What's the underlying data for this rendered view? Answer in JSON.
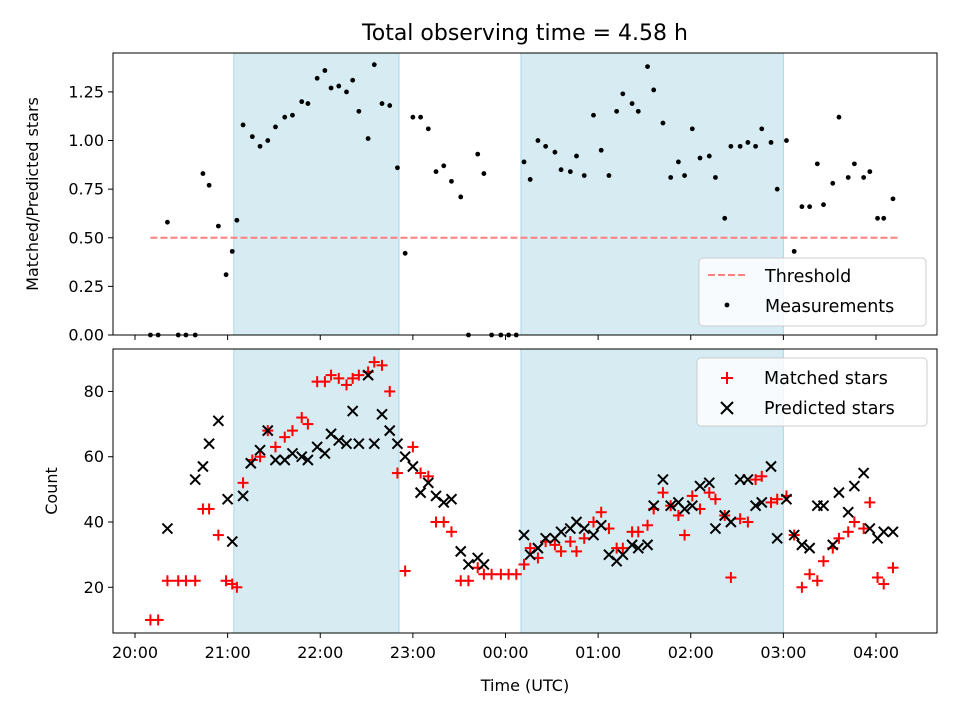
{
  "chart_data": [
    {
      "type": "scatter",
      "title": "Total observing time = 4.58 h",
      "xlabel": "",
      "ylabel": "Matched/Predicted stars",
      "ylim": [
        0,
        1.45
      ],
      "yticks": [
        "0.00",
        "0.25",
        "0.50",
        "0.75",
        "1.00",
        "1.25"
      ],
      "legend_position": "lower right",
      "highlight_intervals_utc": [
        [
          "21:04",
          "22:51"
        ],
        [
          "00:10",
          "03:00"
        ]
      ],
      "threshold": {
        "name": "Threshold",
        "value": 0.5,
        "x_start": "20:10",
        "x_end": "04:15",
        "color": "#ff7f7f",
        "style": "dashed"
      },
      "series": [
        {
          "name": "Measurements",
          "color": "#000000",
          "marker": "dot",
          "x": [
            "20:10",
            "20:15",
            "20:21",
            "20:28",
            "20:33",
            "20:39",
            "20:44",
            "20:48",
            "20:54",
            "20:59",
            "21:03",
            "21:06",
            "21:10",
            "21:16",
            "21:21",
            "21:26",
            "21:31",
            "21:37",
            "21:42",
            "21:48",
            "21:52",
            "21:58",
            "22:03",
            "22:07",
            "22:12",
            "22:17",
            "22:21",
            "22:25",
            "22:31",
            "22:35",
            "22:40",
            "22:45",
            "22:50",
            "22:55",
            "23:00",
            "23:05",
            "23:10",
            "23:15",
            "23:20",
            "23:25",
            "23:31",
            "23:36",
            "23:42",
            "23:46",
            "23:51",
            "23:57",
            "24:02",
            "24:07",
            "24:12",
            "24:16",
            "24:21",
            "24:26",
            "24:32",
            "24:36",
            "24:42",
            "24:46",
            "24:51",
            "24:57",
            "25:02",
            "25:07",
            "25:12",
            "25:16",
            "25:22",
            "25:26",
            "25:32",
            "25:36",
            "25:42",
            "25:47",
            "25:52",
            "25:56",
            "26:01",
            "26:06",
            "26:12",
            "26:16",
            "26:22",
            "26:26",
            "26:32",
            "26:37",
            "26:42",
            "26:46",
            "26:52",
            "26:56",
            "27:02",
            "27:07",
            "27:12",
            "27:17",
            "27:22",
            "27:26",
            "27:32",
            "27:36",
            "27:42",
            "27:46",
            "27:52",
            "27:56",
            "28:01",
            "28:05",
            "28:11"
          ],
          "y": [
            0,
            0,
            0.58,
            0,
            0,
            0,
            0.83,
            0.77,
            0.56,
            0.31,
            0.43,
            0.59,
            1.08,
            1.02,
            0.97,
            1.0,
            1.07,
            1.12,
            1.13,
            1.2,
            1.19,
            1.32,
            1.36,
            1.27,
            1.28,
            1.25,
            1.31,
            1.15,
            1.01,
            1.39,
            1.19,
            1.18,
            0.86,
            0.42,
            1.12,
            1.12,
            1.06,
            0.84,
            0.87,
            0.79,
            0.71,
            0,
            0.93,
            0.83,
            0,
            0,
            0,
            0,
            0.89,
            0.8,
            1.0,
            0.97,
            0.94,
            0.85,
            0.84,
            0.92,
            0.82,
            1.13,
            0.95,
            0.82,
            1.15,
            1.24,
            1.19,
            1.15,
            1.38,
            1.26,
            1.09,
            0.81,
            0.89,
            0.82,
            1.06,
            0.91,
            0.92,
            0.81,
            0.6,
            0.97,
            0.97,
            0.99,
            0.97,
            1.06,
            0.99,
            0.75,
            1.0,
            0.43,
            0.66,
            0.66,
            0.88,
            0.67,
            0.78,
            1.12,
            0.81,
            0.88,
            0.81,
            0.84,
            0.6,
            0.6,
            0.7
          ]
        }
      ]
    },
    {
      "type": "scatter",
      "title": "",
      "xlabel": "Time (UTC)",
      "ylabel": "Count",
      "ylim": [
        6,
        93
      ],
      "yticks": [
        "20",
        "40",
        "60",
        "80"
      ],
      "xticks": [
        "20:00",
        "21:00",
        "22:00",
        "23:00",
        "00:00",
        "01:00",
        "02:00",
        "03:00",
        "04:00"
      ],
      "legend_position": "upper right",
      "highlight_intervals_utc": [
        [
          "21:04",
          "22:51"
        ],
        [
          "00:10",
          "03:00"
        ]
      ],
      "series": [
        {
          "name": "Matched stars",
          "color": "#ff0000",
          "marker": "plus",
          "x": [
            "20:10",
            "20:15",
            "20:21",
            "20:28",
            "20:33",
            "20:39",
            "20:44",
            "20:48",
            "20:54",
            "20:59",
            "21:03",
            "21:06",
            "21:10",
            "21:16",
            "21:21",
            "21:26",
            "21:31",
            "21:37",
            "21:42",
            "21:48",
            "21:52",
            "21:58",
            "22:03",
            "22:07",
            "22:12",
            "22:17",
            "22:21",
            "22:25",
            "22:31",
            "22:35",
            "22:40",
            "22:45",
            "22:50",
            "22:55",
            "23:00",
            "23:05",
            "23:10",
            "23:15",
            "23:20",
            "23:25",
            "23:31",
            "23:36",
            "23:42",
            "23:46",
            "23:51",
            "23:57",
            "24:02",
            "24:07",
            "24:12",
            "24:16",
            "24:21",
            "24:26",
            "24:32",
            "24:36",
            "24:42",
            "24:46",
            "24:51",
            "24:57",
            "25:02",
            "25:07",
            "25:12",
            "25:16",
            "25:22",
            "25:26",
            "25:32",
            "25:36",
            "25:42",
            "25:47",
            "25:52",
            "25:56",
            "26:01",
            "26:06",
            "26:12",
            "26:16",
            "26:22",
            "26:26",
            "26:32",
            "26:37",
            "26:42",
            "26:46",
            "26:52",
            "26:56",
            "27:02",
            "27:07",
            "27:12",
            "27:17",
            "27:22",
            "27:26",
            "27:32",
            "27:36",
            "27:42",
            "27:46",
            "27:52",
            "27:56",
            "28:01",
            "28:05",
            "28:11"
          ],
          "y": [
            10,
            10,
            22,
            22,
            22,
            22,
            44,
            44,
            36,
            22,
            21,
            20,
            52,
            59,
            60,
            68,
            63,
            66,
            68,
            72,
            70,
            83,
            83,
            85,
            84,
            82,
            84,
            85,
            86,
            89,
            88,
            80,
            55,
            25,
            63,
            55,
            54,
            40,
            40,
            37,
            22,
            22,
            26,
            24,
            24,
            24,
            24,
            24,
            27,
            32,
            29,
            34,
            33,
            31,
            34,
            31,
            35,
            40,
            43,
            38,
            32,
            32,
            37,
            37,
            39,
            44,
            49,
            45,
            42,
            36,
            48,
            44,
            49,
            47,
            42,
            23,
            41,
            40,
            53,
            54,
            46,
            47,
            48,
            36,
            20,
            24,
            22,
            28,
            32,
            35,
            37,
            40,
            38,
            46,
            23,
            21,
            26
          ]
        },
        {
          "name": "Predicted stars",
          "color": "#000000",
          "marker": "x",
          "x": [
            "21:00",
            "20:21",
            "21:10",
            "21:15",
            "21:21",
            "21:26",
            "21:31",
            "21:37",
            "21:42",
            "21:48",
            "21:52",
            "21:58",
            "22:03",
            "22:07",
            "22:12",
            "22:17",
            "22:21",
            "22:25",
            "22:31",
            "22:35",
            "22:40",
            "22:45",
            "22:50",
            "22:55",
            "23:00",
            "23:05",
            "23:10",
            "23:15",
            "23:20",
            "23:25",
            "23:31",
            "23:36",
            "23:42",
            "23:46",
            "24:12",
            "24:16",
            "24:21",
            "24:26",
            "24:32",
            "24:36",
            "24:42",
            "24:46",
            "24:51",
            "24:57",
            "25:02",
            "25:07",
            "25:12",
            "25:16",
            "25:22",
            "25:26",
            "25:32",
            "25:36",
            "25:42",
            "25:47",
            "25:52",
            "25:56",
            "26:01",
            "26:06",
            "26:12",
            "26:16",
            "26:22",
            "26:26",
            "26:32",
            "26:37",
            "26:42",
            "26:46",
            "26:52",
            "26:56",
            "27:02",
            "27:07",
            "27:12",
            "27:17",
            "27:22",
            "27:26",
            "27:32",
            "27:36",
            "27:42",
            "27:46",
            "27:52",
            "27:56",
            "28:01",
            "28:05",
            "28:11",
            "20:39",
            "20:44",
            "20:48",
            "20:54",
            "21:03"
          ],
          "y": [
            47,
            38,
            48,
            58,
            62,
            68,
            59,
            59,
            61,
            60,
            59,
            63,
            61,
            67,
            65,
            64,
            74,
            64,
            85,
            64,
            73,
            68,
            64,
            60,
            57,
            49,
            52,
            48,
            46,
            47,
            31,
            27,
            29,
            27,
            36,
            30,
            32,
            35,
            35,
            37,
            38,
            40,
            38,
            36,
            39,
            30,
            28,
            30,
            33,
            32,
            33,
            45,
            53,
            45,
            46,
            44,
            45,
            51,
            52,
            38,
            42,
            40,
            53,
            53,
            45,
            46,
            57,
            35,
            47,
            36,
            33,
            32,
            45,
            45,
            33,
            49,
            43,
            51,
            55,
            38,
            35,
            37,
            37,
            53,
            57,
            64,
            71,
            34
          ]
        }
      ]
    }
  ]
}
